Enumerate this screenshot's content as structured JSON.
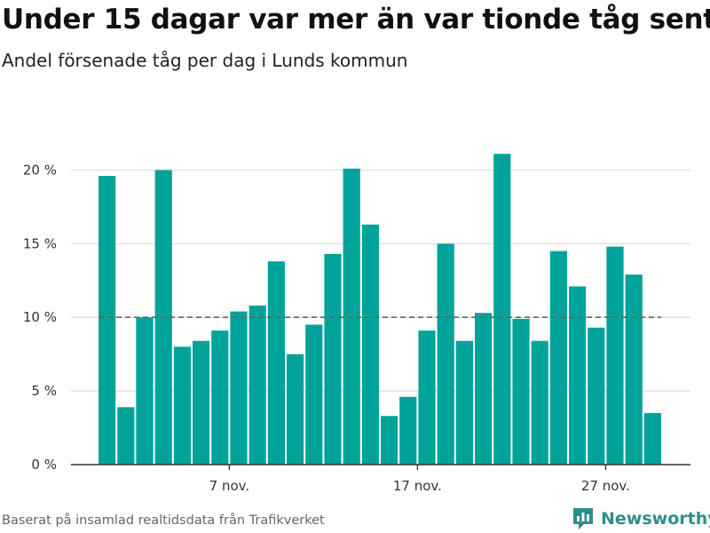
{
  "chart_data": {
    "type": "bar",
    "title": "Under 15 dagar var mer än var tionde tåg sent",
    "subtitle": "Andel försenade tåg per dag i Lunds kommun",
    "x": [
      "2021-11-01",
      "2021-11-02",
      "2021-11-03",
      "2021-11-04",
      "2021-11-05",
      "2021-11-06",
      "2021-11-07",
      "2021-11-08",
      "2021-11-09",
      "2021-11-10",
      "2021-11-11",
      "2021-11-12",
      "2021-11-13",
      "2021-11-14",
      "2021-11-15",
      "2021-11-16",
      "2021-11-17",
      "2021-11-18",
      "2021-11-19",
      "2021-11-20",
      "2021-11-21",
      "2021-11-22",
      "2021-11-23",
      "2021-11-24",
      "2021-11-25",
      "2021-11-26",
      "2021-11-27",
      "2021-11-28",
      "2021-11-29",
      "2021-11-30"
    ],
    "values": [
      19.6,
      3.9,
      10.0,
      20.0,
      8.0,
      8.4,
      9.1,
      10.4,
      10.8,
      13.8,
      7.5,
      9.5,
      14.3,
      20.1,
      16.3,
      3.3,
      4.6,
      9.1,
      15.0,
      8.4,
      10.3,
      21.1,
      9.9,
      8.4,
      14.5,
      12.1,
      9.3,
      14.8,
      12.9,
      3.5
    ],
    "xticks": [
      "7 nov.",
      "17 nov.",
      "27 nov."
    ],
    "xtick_positions": [
      "2021-11-07",
      "2021-11-17",
      "2021-11-27"
    ],
    "yticks": [
      "0 %",
      "5 %",
      "10 %",
      "15 %",
      "20 %"
    ],
    "ytick_values": [
      0,
      5,
      10,
      15,
      20
    ],
    "ylim": [
      0,
      22.5
    ],
    "reference_line": {
      "value": 10,
      "style": "dashed"
    },
    "grid": true,
    "xlabel": "",
    "ylabel": "",
    "colors": {
      "bar": "#00a39a",
      "grid": "#dcdcdc",
      "reference": "#666666",
      "axis": "#333333"
    }
  },
  "footer": {
    "source": "Baserat på insamlad realtidsdata från Trafikverket",
    "brand": "Newsworthy",
    "brand_icon": "bar-chart-logo-icon",
    "brand_color": "#2f8f86"
  }
}
